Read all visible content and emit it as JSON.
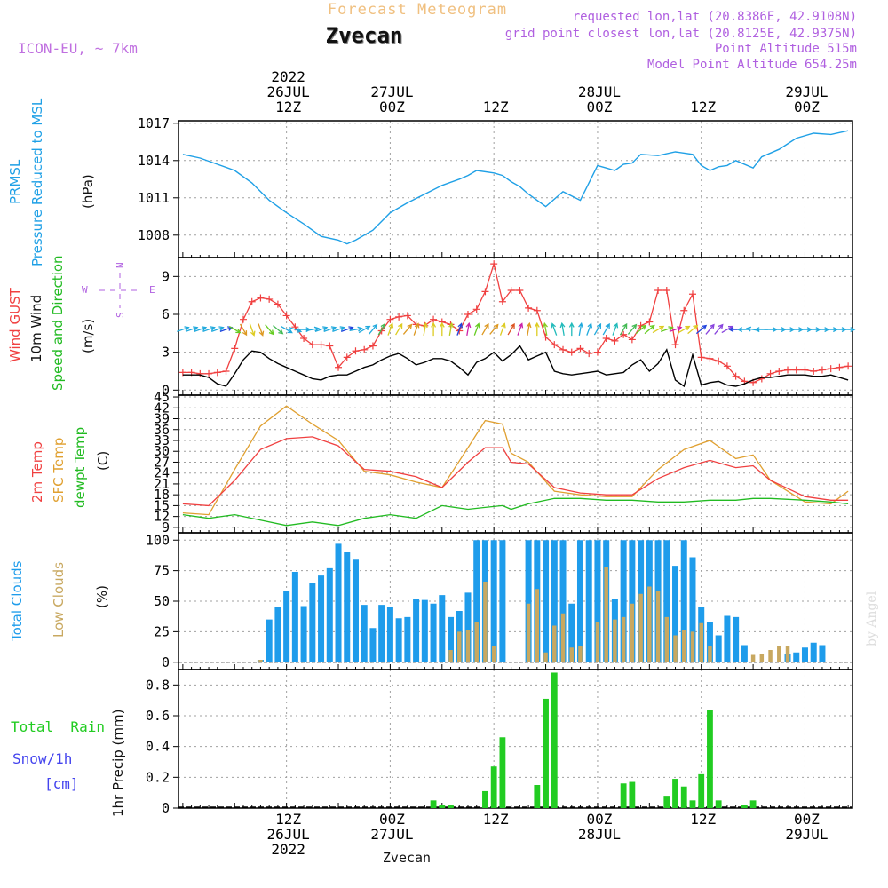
{
  "header": {
    "title": "Forecast Meteogram",
    "station": "Zvecan",
    "model": "ICON-EU, ~ 7km",
    "requested": "requested lon,lat (20.8386E, 42.9108N)",
    "grid_point": "grid point closest lon,lat (20.8125E, 42.9375N)",
    "point_altitude": "Point Altitude 515m",
    "model_altitude": "Model Point Altitude 654.25m",
    "footer_station": "Zvecan",
    "watermark": "by Angel"
  },
  "time_axis": {
    "top_labels": [
      {
        "time": 12,
        "lines": [
          "2022",
          "26JUL",
          "12Z"
        ]
      },
      {
        "time": 24,
        "lines": [
          "27JUL",
          "00Z"
        ]
      },
      {
        "time": 36,
        "lines": [
          "12Z"
        ]
      },
      {
        "time": 48,
        "lines": [
          "28JUL",
          "00Z"
        ]
      },
      {
        "time": 60,
        "lines": [
          "12Z"
        ]
      },
      {
        "time": 72,
        "lines": [
          "29JUL",
          "00Z"
        ]
      }
    ],
    "bottom_labels": [
      {
        "time": 12,
        "lines": [
          "12Z",
          "26JUL",
          "2022"
        ]
      },
      {
        "time": 24,
        "lines": [
          "00Z",
          "27JUL"
        ]
      },
      {
        "time": 36,
        "lines": [
          "12Z"
        ]
      },
      {
        "time": 48,
        "lines": [
          "00Z",
          "28JUL"
        ]
      },
      {
        "time": 60,
        "lines": [
          "12Z"
        ]
      },
      {
        "time": 72,
        "lines": [
          "00Z",
          "29JUL"
        ]
      }
    ]
  },
  "colors": {
    "pressure": "#1fa0e6",
    "gust": "#f04040",
    "wind": "#000000",
    "direction_label": "#22bb22",
    "temp2m": "#f04040",
    "sfc": "#e0a030",
    "dewpt": "#22bb22",
    "total_clouds": "#1e9ceb",
    "low_clouds": "#c8a860",
    "rain": "#22cc22",
    "snow": "#4444ee",
    "compass": "#b060e0",
    "grid": "#a0a0a0",
    "header_title": "#f0c080",
    "header_info": "#b060e0",
    "model": "#c070e0"
  },
  "panel_labels": {
    "pressure": {
      "lines": [
        "PRMSL",
        "Pressure Reduced to MSL"
      ],
      "unit": "(hPa)"
    },
    "wind": {
      "gust": "Wind GUST",
      "wind": "10m Wind",
      "dir": "Speed and Direction",
      "unit": "(m/s)"
    },
    "temperature": {
      "t2m": "2m Temp",
      "sfc": "SFC Temp",
      "dew": "dewpt Temp",
      "unit": "(C)"
    },
    "clouds": {
      "total": "Total Clouds",
      "low": "Low Clouds",
      "unit": "(%)"
    },
    "precip": {
      "rain": "Total  Rain",
      "snow": "Snow/1h",
      "snow_unit": "[cm]",
      "axis": "1hr Precip (mm)"
    },
    "compass": {
      "n": "N",
      "s": "S",
      "w": "W",
      "e": "E"
    }
  },
  "chart_data": [
    {
      "type": "line",
      "title": "PRMSL",
      "ylabel": "(hPa)",
      "ylim": [
        1006.2,
        1017.2
      ],
      "yticks": [
        1008,
        1011,
        1014,
        1017
      ],
      "x": [
        0,
        2,
        4,
        6,
        8,
        10,
        12,
        14,
        16,
        18,
        19,
        20,
        22,
        24,
        26,
        28,
        30,
        32,
        33,
        34,
        36,
        37,
        38,
        39,
        40,
        42,
        44,
        46,
        48,
        49,
        50,
        51,
        52,
        53,
        55,
        57,
        59,
        60,
        61,
        62,
        63,
        64,
        66,
        67,
        69,
        71,
        73,
        75,
        77
      ],
      "series": [
        {
          "values": [
            1014.5,
            1014.2,
            1013.7,
            1013.2,
            1012.2,
            1010.8,
            1009.8,
            1008.9,
            1007.9,
            1007.6,
            1007.3,
            1007.6,
            1008.4,
            1009.8,
            1010.6,
            1011.3,
            1012.0,
            1012.5,
            1012.8,
            1013.2,
            1013.0,
            1012.8,
            1012.3,
            1011.9,
            1011.3,
            1010.3,
            1011.5,
            1010.8,
            1013.6,
            1013.4,
            1013.2,
            1013.7,
            1013.8,
            1014.5,
            1014.4,
            1014.7,
            1014.5,
            1013.6,
            1013.2,
            1013.5,
            1013.6,
            1014.0,
            1013.4,
            1014.3,
            1014.9,
            1015.8,
            1016.2,
            1016.1,
            1016.4
          ]
        }
      ]
    },
    {
      "type": "line",
      "title": "Wind",
      "ylabel": "(m/s)",
      "ylim": [
        -0.4,
        10.5
      ],
      "yticks": [
        0,
        3,
        6,
        9
      ],
      "x": [
        0,
        1,
        2,
        3,
        4,
        5,
        6,
        7,
        8,
        9,
        10,
        11,
        12,
        13,
        14,
        15,
        16,
        17,
        18,
        19,
        20,
        21,
        22,
        23,
        24,
        25,
        26,
        27,
        28,
        29,
        30,
        31,
        32,
        33,
        34,
        35,
        36,
        37,
        38,
        39,
        40,
        41,
        42,
        43,
        44,
        45,
        46,
        47,
        48,
        49,
        50,
        51,
        52,
        53,
        54,
        55,
        56,
        57,
        58,
        59,
        60,
        61,
        62,
        63,
        64,
        65,
        66,
        67,
        68,
        69,
        70,
        71,
        72,
        73,
        74,
        75,
        76,
        77
      ],
      "series": [
        {
          "name": "Wind GUST",
          "values": [
            1.4,
            1.4,
            1.3,
            1.3,
            1.4,
            1.5,
            3.3,
            5.6,
            7.0,
            7.3,
            7.2,
            6.8,
            5.9,
            5.0,
            4.1,
            3.6,
            3.6,
            3.5,
            1.8,
            2.6,
            3.1,
            3.2,
            3.5,
            4.7,
            5.6,
            5.8,
            5.9,
            5.2,
            5.1,
            5.6,
            5.4,
            5.2,
            4.7,
            6.0,
            6.4,
            7.8,
            10.0,
            7.0,
            7.9,
            7.9,
            6.5,
            6.3,
            4.2,
            3.6,
            3.2,
            3.0,
            3.3,
            2.9,
            3.0,
            4.1,
            3.9,
            4.4,
            4.0,
            5.1,
            5.4,
            7.9,
            7.9,
            3.6,
            6.3,
            7.6,
            2.6,
            2.5,
            2.3,
            1.9,
            1.1,
            0.7,
            0.6,
            0.9,
            1.3,
            1.5,
            1.6,
            1.6,
            1.6,
            1.5,
            1.6,
            1.7,
            1.8,
            1.9
          ]
        },
        {
          "name": "10m Wind",
          "values": [
            1.2,
            1.2,
            1.2,
            1.0,
            0.5,
            0.3,
            1.3,
            2.4,
            3.1,
            3.0,
            2.5,
            2.1,
            1.8,
            1.5,
            1.2,
            0.9,
            0.8,
            1.1,
            1.2,
            1.2,
            1.5,
            1.8,
            2.0,
            2.4,
            2.7,
            2.9,
            2.5,
            2.0,
            2.2,
            2.5,
            2.5,
            2.3,
            1.8,
            1.2,
            2.2,
            2.5,
            3.0,
            2.3,
            2.8,
            3.5,
            2.4,
            2.7,
            3.0,
            1.5,
            1.3,
            1.2,
            1.3,
            1.4,
            1.5,
            1.2,
            1.3,
            1.4,
            2.0,
            2.4,
            1.5,
            2.1,
            3.2,
            0.8,
            0.3,
            2.8,
            0.4,
            0.6,
            0.7,
            0.4,
            0.3,
            0.5,
            0.8,
            1.0,
            1.0,
            1.1,
            1.2,
            1.2,
            1.2,
            1.1,
            1.1,
            1.2,
            1.0,
            0.8
          ]
        }
      ],
      "direction_deg": [
        250,
        250,
        250,
        250,
        250,
        250,
        300,
        330,
        340,
        340,
        320,
        310,
        300,
        290,
        270,
        260,
        250,
        250,
        250,
        250,
        260,
        240,
        220,
        210,
        200,
        210,
        220,
        200,
        190,
        180,
        180,
        190,
        200,
        190,
        200,
        210,
        220,
        200,
        210,
        200,
        190,
        180,
        170,
        160,
        170,
        180,
        190,
        200,
        210,
        210,
        200,
        210,
        220,
        230,
        230,
        240,
        250,
        250,
        240,
        230,
        230,
        220,
        220,
        240,
        90,
        90,
        100,
        90,
        270,
        270,
        270,
        270,
        270,
        270,
        270,
        270,
        270,
        270
      ],
      "direction_colors": [
        "#22aadd",
        "#22aadd",
        "#22aadd",
        "#22aadd",
        "#22aadd",
        "#2244dd",
        "#66cc22",
        "#dd9922",
        "#ddcc22",
        "#dd9922",
        "#66cc22",
        "#44bb55",
        "#22aadd",
        "#22aadd",
        "#22aadd",
        "#22aadd",
        "#22aadd",
        "#22aadd",
        "#22aadd",
        "#2244dd",
        "#22aadd",
        "#22aadd",
        "#22aadd",
        "#44bb55",
        "#ddcc22",
        "#ddcc22",
        "#dd9922",
        "#dd9922",
        "#ddcc22",
        "#ddcc22",
        "#ddcc22",
        "#bbcc22",
        "#2244dd",
        "#cc22aa",
        "#66cc22",
        "#dd9922",
        "#dd9922",
        "#ddcc22",
        "#dd5522",
        "#cc22aa",
        "#dd9922",
        "#ddcc22",
        "#88cc22",
        "#22bbbb",
        "#22bbbb",
        "#22bbbb",
        "#22aadd",
        "#22aadd",
        "#22aadd",
        "#22aadd",
        "#22bbbb",
        "#44bb55",
        "#44bb55",
        "#66cc22",
        "#66cc22",
        "#ddcc22",
        "#66cc22",
        "#cc22aa",
        "#ddcc22",
        "#ddcc22",
        "#2244dd",
        "#8844dd",
        "#8844dd",
        "#8844dd",
        "#2244dd",
        "#22aadd",
        "#22aadd",
        "#22aadd",
        "#22aadd",
        "#22aadd",
        "#22aadd",
        "#22aadd",
        "#22aadd",
        "#22aadd",
        "#22aadd",
        "#22aadd",
        "#22aadd",
        "#22aadd"
      ]
    },
    {
      "type": "line",
      "title": "Temperature",
      "ylabel": "(C)",
      "ylim": [
        7.5,
        45.5
      ],
      "yticks": [
        9,
        12,
        15,
        18,
        21,
        24,
        27,
        30,
        33,
        36,
        39,
        42,
        45
      ],
      "x": [
        0,
        3,
        6,
        9,
        12,
        15,
        18,
        21,
        24,
        27,
        30,
        33,
        35,
        37,
        38,
        40,
        43,
        46,
        49,
        52,
        55,
        58,
        61,
        64,
        66,
        68,
        72,
        75,
        77
      ],
      "series": [
        {
          "name": "2m Temp",
          "values": [
            15.5,
            15.0,
            22.0,
            30.5,
            33.5,
            34.0,
            31.5,
            25.0,
            24.5,
            23.0,
            20.0,
            27.0,
            31.0,
            31.0,
            27.0,
            26.5,
            20.0,
            18.5,
            18.0,
            18.0,
            22.5,
            25.5,
            27.5,
            25.5,
            26.0,
            22.0,
            17.5,
            16.5,
            16.5
          ]
        },
        {
          "name": "SFC Temp",
          "values": [
            13.0,
            12.5,
            25.0,
            37.0,
            42.5,
            37.5,
            33.0,
            24.5,
            23.5,
            21.5,
            20.0,
            31.0,
            38.5,
            37.5,
            29.5,
            27.0,
            19.0,
            18.0,
            17.5,
            17.5,
            25.0,
            30.5,
            33.0,
            28.0,
            29.0,
            22.0,
            16.0,
            15.5,
            19.0
          ]
        },
        {
          "name": "dewpt Temp",
          "values": [
            12.5,
            11.5,
            12.5,
            11.0,
            9.5,
            10.5,
            9.5,
            11.5,
            12.5,
            11.5,
            15.0,
            14.0,
            14.5,
            15.0,
            14.0,
            15.5,
            17.0,
            17.0,
            16.5,
            16.5,
            16.0,
            16.0,
            16.5,
            16.5,
            17.0,
            17.0,
            16.5,
            16.0,
            15.5
          ]
        }
      ]
    },
    {
      "type": "bar",
      "title": "Clouds",
      "ylabel": "(%)",
      "ylim": [
        -6,
        106
      ],
      "yticks": [
        0,
        25,
        50,
        75,
        100
      ],
      "x": [
        0,
        1,
        2,
        3,
        4,
        5,
        6,
        7,
        8,
        9,
        10,
        11,
        12,
        13,
        14,
        15,
        16,
        17,
        18,
        19,
        20,
        21,
        22,
        23,
        24,
        25,
        26,
        27,
        28,
        29,
        30,
        31,
        32,
        33,
        34,
        35,
        36,
        37,
        38,
        39,
        40,
        41,
        42,
        43,
        44,
        45,
        46,
        47,
        48,
        49,
        50,
        51,
        52,
        53,
        54,
        55,
        56,
        57,
        58,
        59,
        60,
        61,
        62,
        63,
        64,
        65,
        66,
        67,
        68,
        69,
        70,
        71,
        72,
        73,
        74,
        75,
        76,
        77
      ],
      "series": [
        {
          "name": "Total Clouds",
          "values": [
            0,
            0,
            0,
            0,
            0,
            0,
            0,
            0,
            0,
            2,
            35,
            45,
            58,
            74,
            46,
            65,
            71,
            77,
            97,
            90,
            84,
            47,
            28,
            47,
            45,
            36,
            37,
            52,
            51,
            48,
            55,
            37,
            42,
            57,
            100,
            100,
            100,
            100,
            0,
            0,
            100,
            100,
            100,
            100,
            100,
            48,
            100,
            100,
            100,
            100,
            52,
            100,
            100,
            100,
            100,
            100,
            100,
            79,
            100,
            86,
            45,
            33,
            22,
            38,
            37,
            14,
            0,
            0,
            0,
            0,
            7,
            8,
            12,
            16,
            14,
            0,
            0,
            0
          ]
        },
        {
          "name": "Low Clouds",
          "values": [
            0,
            0,
            0,
            0,
            0,
            0,
            0,
            0,
            0,
            2,
            0,
            0,
            0,
            0,
            0,
            0,
            0,
            0,
            0,
            0,
            0,
            0,
            0,
            0,
            0,
            0,
            0,
            0,
            0,
            0,
            0,
            0,
            0,
            0,
            0,
            0,
            0,
            0,
            0,
            0,
            0,
            0,
            0,
            0,
            0,
            0,
            0,
            0,
            0,
            0,
            0,
            0,
            0,
            0,
            0,
            0,
            0,
            0,
            0,
            0,
            0,
            0,
            0,
            0,
            0,
            0,
            0,
            0,
            0,
            0,
            0,
            0,
            0,
            0,
            0,
            0,
            0,
            0
          ]
        },
        {
          "name": "Low Clouds Extended",
          "values": [
            0,
            0,
            0,
            0,
            0,
            0,
            0,
            0,
            0,
            0,
            0,
            0,
            0,
            0,
            0,
            0,
            0,
            0,
            0,
            0,
            0,
            0,
            0,
            0,
            0,
            0,
            0,
            0,
            0,
            0,
            0,
            10,
            25,
            26,
            33,
            66,
            13,
            0,
            0,
            0,
            48,
            60,
            8,
            30,
            40,
            12,
            13,
            0,
            33,
            78,
            35,
            37,
            48,
            56,
            62,
            58,
            37,
            22,
            26,
            25,
            32,
            13,
            0,
            0,
            0,
            0,
            6,
            7,
            10,
            13,
            13,
            0,
            0,
            0,
            0,
            0,
            0,
            0
          ]
        }
      ]
    },
    {
      "type": "bar",
      "title": "Precipitation",
      "ylabel": "1hr Precip (mm)",
      "ylim": [
        0,
        0.9
      ],
      "yticks": [
        0,
        0.2,
        0.4,
        0.6,
        0.8
      ],
      "x": [
        29,
        30,
        31,
        35,
        36,
        37,
        41,
        42,
        43,
        51,
        52,
        56,
        57,
        58,
        59,
        60,
        61,
        62,
        65,
        66,
        67
      ],
      "series": [
        {
          "name": "Total Rain",
          "values": [
            0.05,
            0.02,
            0.02,
            0.11,
            0.27,
            0.46,
            0.15,
            0.71,
            0.88,
            0.16,
            0.17,
            0.08,
            0.19,
            0.14,
            0.05,
            0.22,
            0.64,
            0.05,
            0.02,
            0.05,
            0.0
          ]
        }
      ]
    }
  ]
}
